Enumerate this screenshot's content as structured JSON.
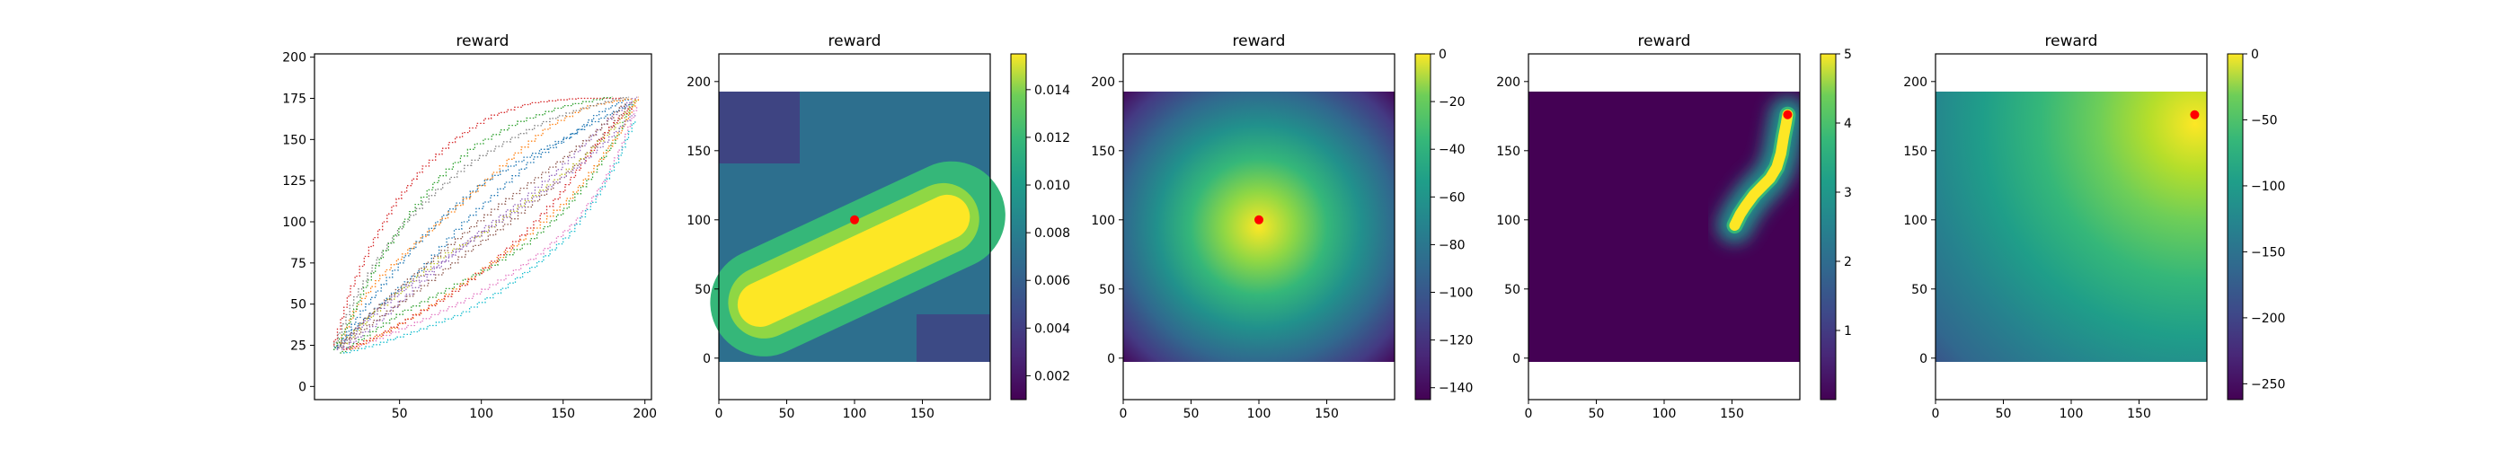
{
  "chart_data": [
    {
      "type": "line",
      "title": "reward",
      "xlim": [
        -2,
        204
      ],
      "ylim": [
        -8,
        202
      ],
      "xticks": [
        50,
        100,
        150,
        200
      ],
      "yticks": [
        0,
        25,
        50,
        75,
        100,
        125,
        150,
        175,
        200
      ],
      "xtick_labels": [
        "50",
        "100",
        "150",
        "200"
      ],
      "ytick_labels": [
        "0",
        "25",
        "50",
        "75",
        "100",
        "125",
        "150",
        "175",
        "200"
      ],
      "grid": false,
      "line_style": "dotted",
      "colors": [
        "#1f77b4",
        "#ff7f0e",
        "#2ca02c",
        "#d62728",
        "#9467bd",
        "#8c564b",
        "#e377c2",
        "#7f7f7f",
        "#bcbd22",
        "#17becf"
      ],
      "series": [
        {
          "points": [
            [
              10,
              22
            ],
            [
              28,
              40
            ],
            [
              45,
              55
            ],
            [
              65,
              72
            ],
            [
              88,
              98
            ],
            [
              110,
              118
            ],
            [
              132,
              138
            ],
            [
              155,
              152
            ],
            [
              172,
              166
            ],
            [
              190,
              175
            ]
          ]
        },
        {
          "points": [
            [
              12,
              24
            ],
            [
              24,
              48
            ],
            [
              38,
              66
            ],
            [
              55,
              82
            ],
            [
              75,
              100
            ],
            [
              98,
              120
            ],
            [
              120,
              140
            ],
            [
              142,
              158
            ],
            [
              165,
              170
            ],
            [
              192,
              175
            ]
          ]
        },
        {
          "points": [
            [
              14,
              20
            ],
            [
              32,
              32
            ],
            [
              52,
              45
            ],
            [
              78,
              58
            ],
            [
              105,
              72
            ],
            [
              130,
              88
            ],
            [
              150,
              106
            ],
            [
              168,
              128
            ],
            [
              182,
              150
            ],
            [
              193,
              172
            ]
          ]
        },
        {
          "points": [
            [
              10,
              25
            ],
            [
              20,
              58
            ],
            [
              34,
              88
            ],
            [
              48,
              112
            ],
            [
              64,
              132
            ],
            [
              84,
              150
            ],
            [
              106,
              164
            ],
            [
              130,
              172
            ],
            [
              158,
              175
            ],
            [
              186,
              175
            ]
          ]
        },
        {
          "points": [
            [
              15,
              22
            ],
            [
              36,
              38
            ],
            [
              58,
              58
            ],
            [
              80,
              78
            ],
            [
              102,
              96
            ],
            [
              124,
              112
            ],
            [
              146,
              130
            ],
            [
              164,
              148
            ],
            [
              180,
              164
            ],
            [
              195,
              176
            ]
          ]
        },
        {
          "points": [
            [
              12,
              22
            ],
            [
              30,
              36
            ],
            [
              50,
              50
            ],
            [
              72,
              66
            ],
            [
              95,
              84
            ],
            [
              118,
              100
            ],
            [
              140,
              118
            ],
            [
              160,
              136
            ],
            [
              178,
              156
            ],
            [
              194,
              174
            ]
          ]
        },
        {
          "points": [
            [
              18,
              22
            ],
            [
              40,
              30
            ],
            [
              64,
              40
            ],
            [
              90,
              52
            ],
            [
              115,
              66
            ],
            [
              138,
              82
            ],
            [
              158,
              100
            ],
            [
              174,
              122
            ],
            [
              186,
              146
            ],
            [
              195,
              170
            ]
          ]
        },
        {
          "points": [
            [
              10,
              24
            ],
            [
              22,
              52
            ],
            [
              36,
              76
            ],
            [
              52,
              98
            ],
            [
              72,
              118
            ],
            [
              94,
              136
            ],
            [
              118,
              150
            ],
            [
              142,
              162
            ],
            [
              166,
              170
            ],
            [
              190,
              176
            ]
          ]
        },
        {
          "points": [
            [
              14,
              24
            ],
            [
              34,
              44
            ],
            [
              56,
              62
            ],
            [
              78,
              80
            ],
            [
              100,
              92
            ],
            [
              122,
              108
            ],
            [
              144,
              124
            ],
            [
              164,
              140
            ],
            [
              182,
              158
            ],
            [
              196,
              175
            ]
          ]
        },
        {
          "points": [
            [
              16,
              20
            ],
            [
              38,
              26
            ],
            [
              62,
              34
            ],
            [
              88,
              44
            ],
            [
              112,
              58
            ],
            [
              134,
              74
            ],
            [
              154,
              92
            ],
            [
              170,
              114
            ],
            [
              184,
              138
            ],
            [
              194,
              162
            ]
          ]
        },
        {
          "points": [
            [
              12,
              23
            ],
            [
              26,
              44
            ],
            [
              42,
              64
            ],
            [
              60,
              86
            ],
            [
              80,
              106
            ],
            [
              102,
              124
            ],
            [
              126,
              138
            ],
            [
              150,
              150
            ],
            [
              172,
              162
            ],
            [
              192,
              172
            ]
          ]
        },
        {
          "points": [
            [
              20,
              22
            ],
            [
              44,
              34
            ],
            [
              68,
              48
            ],
            [
              92,
              64
            ],
            [
              114,
              80
            ],
            [
              136,
              98
            ],
            [
              156,
              116
            ],
            [
              172,
              136
            ],
            [
              186,
              156
            ],
            [
              196,
              176
            ]
          ]
        },
        {
          "points": [
            [
              10,
              22
            ],
            [
              18,
              36
            ],
            [
              28,
              58
            ],
            [
              40,
              80
            ],
            [
              56,
              104
            ],
            [
              74,
              126
            ],
            [
              96,
              146
            ],
            [
              122,
              160
            ],
            [
              150,
              170
            ],
            [
              180,
              176
            ]
          ]
        },
        {
          "points": [
            [
              16,
              22
            ],
            [
              36,
              30
            ],
            [
              58,
              42
            ],
            [
              82,
              56
            ],
            [
              106,
              74
            ],
            [
              128,
              94
            ],
            [
              148,
              116
            ],
            [
              164,
              138
            ],
            [
              178,
              156
            ],
            [
              192,
              170
            ]
          ]
        },
        {
          "points": [
            [
              12,
              22
            ],
            [
              32,
              42
            ],
            [
              54,
              60
            ],
            [
              74,
              74
            ],
            [
              96,
              90
            ],
            [
              118,
              104
            ],
            [
              140,
              120
            ],
            [
              160,
              134
            ],
            [
              178,
              150
            ],
            [
              194,
              166
            ]
          ]
        },
        {
          "points": [
            [
              14,
              25
            ],
            [
              28,
              40
            ],
            [
              44,
              54
            ],
            [
              62,
              70
            ],
            [
              84,
              88
            ],
            [
              106,
              106
            ],
            [
              128,
              122
            ],
            [
              150,
              138
            ],
            [
              170,
              154
            ],
            [
              188,
              172
            ]
          ]
        }
      ]
    },
    {
      "type": "heatmap",
      "title": "reward",
      "xlim": [
        0,
        200
      ],
      "ylim": [
        -30,
        220
      ],
      "data_extent_y": [
        0,
        200
      ],
      "xticks": [
        0,
        50,
        100,
        150
      ],
      "yticks": [
        0,
        50,
        100,
        150,
        200
      ],
      "xtick_labels": [
        "0",
        "50",
        "100",
        "150"
      ],
      "ytick_labels": [
        "0",
        "50",
        "100",
        "150",
        "200"
      ],
      "colormap": "viridis",
      "colorbar": {
        "min": 0.001,
        "max": 0.0155,
        "ticks": [
          0.002,
          0.004,
          0.006,
          0.008,
          0.01,
          0.012,
          0.014
        ],
        "tick_labels": [
          "0.002",
          "0.004",
          "0.006",
          "0.008",
          "0.010",
          "0.012",
          "0.014"
        ]
      },
      "field": "diagonal-band",
      "marker": {
        "x": 100,
        "y": 100,
        "color": "#ff0000"
      }
    },
    {
      "type": "heatmap",
      "title": "reward",
      "xlim": [
        0,
        200
      ],
      "ylim": [
        -30,
        220
      ],
      "data_extent_y": [
        0,
        200
      ],
      "xticks": [
        0,
        50,
        100,
        150
      ],
      "yticks": [
        0,
        50,
        100,
        150,
        200
      ],
      "xtick_labels": [
        "0",
        "50",
        "100",
        "150"
      ],
      "ytick_labels": [
        "0",
        "50",
        "100",
        "150",
        "200"
      ],
      "colormap": "viridis",
      "colorbar": {
        "min": -145,
        "max": 0,
        "ticks": [
          0,
          -20,
          -40,
          -60,
          -80,
          -100,
          -120,
          -140
        ],
        "tick_labels": [
          "0",
          "−20",
          "−40",
          "−60",
          "−80",
          "−100",
          "−120",
          "−140"
        ]
      },
      "field": "radial-distance",
      "marker": {
        "x": 100,
        "y": 100,
        "color": "#ff0000"
      }
    },
    {
      "type": "heatmap",
      "title": "reward",
      "xlim": [
        0,
        200
      ],
      "ylim": [
        -30,
        220
      ],
      "data_extent_y": [
        0,
        200
      ],
      "xticks": [
        0,
        50,
        100,
        150
      ],
      "yticks": [
        0,
        50,
        100,
        150,
        200
      ],
      "xtick_labels": [
        "0",
        "50",
        "100",
        "150"
      ],
      "ytick_labels": [
        "0",
        "50",
        "100",
        "150",
        "200"
      ],
      "colormap": "viridis",
      "colorbar": {
        "min": 0,
        "max": 5,
        "ticks": [
          1,
          2,
          3,
          4,
          5
        ],
        "tick_labels": [
          "1",
          "2",
          "3",
          "4",
          "5"
        ]
      },
      "field": "curved-path",
      "path": [
        [
          152,
          96
        ],
        [
          156,
          104
        ],
        [
          160,
          110
        ],
        [
          166,
          118
        ],
        [
          172,
          124
        ],
        [
          178,
          130
        ],
        [
          183,
          138
        ],
        [
          186,
          148
        ],
        [
          188,
          160
        ],
        [
          190,
          170
        ],
        [
          191,
          176
        ]
      ],
      "marker": {
        "x": 191,
        "y": 176,
        "color": "#ff0000"
      }
    },
    {
      "type": "heatmap",
      "title": "reward",
      "xlim": [
        0,
        200
      ],
      "ylim": [
        -30,
        220
      ],
      "data_extent_y": [
        0,
        200
      ],
      "xticks": [
        0,
        50,
        100,
        150
      ],
      "yticks": [
        0,
        50,
        100,
        150,
        200
      ],
      "xtick_labels": [
        "0",
        "50",
        "100",
        "150"
      ],
      "ytick_labels": [
        "0",
        "50",
        "100",
        "150",
        "200"
      ],
      "colormap": "viridis",
      "colorbar": {
        "min": -262,
        "max": 0,
        "ticks": [
          0,
          -50,
          -100,
          -150,
          -200,
          -250
        ],
        "tick_labels": [
          "0",
          "−50",
          "−100",
          "−150",
          "−200",
          "−250"
        ]
      },
      "field": "distance-from-corner",
      "marker": {
        "x": 191,
        "y": 176,
        "color": "#ff0000"
      }
    }
  ]
}
